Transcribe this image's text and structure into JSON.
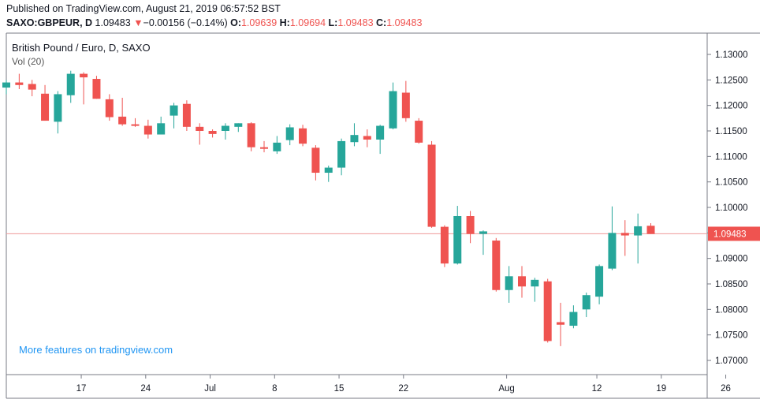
{
  "header": {
    "published": "Published on TradingView.com, August 21, 2019 06:57:52 BST",
    "symbol": "SAXO:GBPEUR, D",
    "last": "1.09483",
    "down_arrow": "▼",
    "change": "−0.00156 (−0.14%)",
    "o_label": "O:",
    "o_value": "1.09639",
    "h_label": "H:",
    "h_value": "1.09694",
    "l_label": "L:",
    "l_value": "1.09483",
    "c_label": "C:",
    "c_value": "1.09483"
  },
  "legend": {
    "title": "British Pound / Euro, D, SAXO",
    "volume": "Vol (20)"
  },
  "watermark": "More features on tradingview.com",
  "colors": {
    "up": "#26a69a",
    "down": "#ef5350",
    "grid": "#e0e3eb",
    "axis_text": "#131722",
    "price_line": "#ef9a9a",
    "watermark": "#2196f3"
  },
  "chart_data": {
    "type": "candlestick",
    "title": "British Pound / Euro, D, SAXO",
    "ylim": [
      1.065,
      1.134
    ],
    "y_ticks": [
      "1.13000",
      "1.12500",
      "1.12000",
      "1.11500",
      "1.11000",
      "1.10500",
      "1.10000",
      "1.09500",
      "1.09000",
      "1.08500",
      "1.08000",
      "1.07500",
      "1.07000"
    ],
    "x_ticks": [
      {
        "label": "17",
        "index": 3
      },
      {
        "label": "24",
        "index": 8
      },
      {
        "label": "Jul",
        "index": 13
      },
      {
        "label": "8",
        "index": 18
      },
      {
        "label": "15",
        "index": 23
      },
      {
        "label": "22",
        "index": 28
      },
      {
        "label": "Aug",
        "index": 36
      },
      {
        "label": "12",
        "index": 43
      },
      {
        "label": "19",
        "index": 48
      },
      {
        "label": "26",
        "index": 53
      }
    ],
    "last_price": 1.09483,
    "last_price_label": "1.09483",
    "candles": [
      {
        "o": 1.1235,
        "h": 1.125,
        "l": 1.1222,
        "c": 1.1245
      },
      {
        "o": 1.1245,
        "h": 1.1262,
        "l": 1.1232,
        "c": 1.124
      },
      {
        "o": 1.1242,
        "h": 1.125,
        "l": 1.1218,
        "c": 1.1231
      },
      {
        "o": 1.1223,
        "h": 1.124,
        "l": 1.117,
        "c": 1.117
      },
      {
        "o": 1.1168,
        "h": 1.1228,
        "l": 1.1145,
        "c": 1.1222
      },
      {
        "o": 1.122,
        "h": 1.1268,
        "l": 1.1205,
        "c": 1.1262
      },
      {
        "o": 1.1262,
        "h": 1.1265,
        "l": 1.1202,
        "c": 1.1255
      },
      {
        "o": 1.1252,
        "h": 1.1258,
        "l": 1.1213,
        "c": 1.1213
      },
      {
        "o": 1.1212,
        "h": 1.1222,
        "l": 1.117,
        "c": 1.1177
      },
      {
        "o": 1.1178,
        "h": 1.1215,
        "l": 1.116,
        "c": 1.1163
      },
      {
        "o": 1.1163,
        "h": 1.1175,
        "l": 1.1158,
        "c": 1.116
      },
      {
        "o": 1.116,
        "h": 1.1172,
        "l": 1.1135,
        "c": 1.1143
      },
      {
        "o": 1.1143,
        "h": 1.1178,
        "l": 1.1143,
        "c": 1.1165
      },
      {
        "o": 1.118,
        "h": 1.1205,
        "l": 1.1155,
        "c": 1.12
      },
      {
        "o": 1.1203,
        "h": 1.121,
        "l": 1.115,
        "c": 1.1158
      },
      {
        "o": 1.1158,
        "h": 1.1165,
        "l": 1.1123,
        "c": 1.115
      },
      {
        "o": 1.115,
        "h": 1.1153,
        "l": 1.1137,
        "c": 1.1144
      },
      {
        "o": 1.115,
        "h": 1.1165,
        "l": 1.1133,
        "c": 1.116
      },
      {
        "o": 1.1158,
        "h": 1.1165,
        "l": 1.1148,
        "c": 1.1165
      },
      {
        "o": 1.1165,
        "h": 1.1167,
        "l": 1.111,
        "c": 1.1118
      },
      {
        "o": 1.1118,
        "h": 1.113,
        "l": 1.1108,
        "c": 1.1115
      },
      {
        "o": 1.111,
        "h": 1.114,
        "l": 1.1105,
        "c": 1.1127
      },
      {
        "o": 1.1132,
        "h": 1.1163,
        "l": 1.1122,
        "c": 1.1157
      },
      {
        "o": 1.1155,
        "h": 1.1162,
        "l": 1.112,
        "c": 1.1125
      },
      {
        "o": 1.1117,
        "h": 1.1122,
        "l": 1.1053,
        "c": 1.1068
      },
      {
        "o": 1.1068,
        "h": 1.1082,
        "l": 1.105,
        "c": 1.1078
      },
      {
        "o": 1.1078,
        "h": 1.1135,
        "l": 1.1063,
        "c": 1.113
      },
      {
        "o": 1.1128,
        "h": 1.1165,
        "l": 1.112,
        "c": 1.1142
      },
      {
        "o": 1.114,
        "h": 1.1153,
        "l": 1.1118,
        "c": 1.1133
      },
      {
        "o": 1.1133,
        "h": 1.1162,
        "l": 1.1105,
        "c": 1.116
      },
      {
        "o": 1.1155,
        "h": 1.1245,
        "l": 1.1153,
        "c": 1.1228
      },
      {
        "o": 1.1225,
        "h": 1.1248,
        "l": 1.1168,
        "c": 1.1175
      },
      {
        "o": 1.117,
        "h": 1.1175,
        "l": 1.1125,
        "c": 1.1127
      },
      {
        "o": 1.1123,
        "h": 1.113,
        "l": 1.096,
        "c": 1.0962
      },
      {
        "o": 1.0962,
        "h": 1.0965,
        "l": 1.0883,
        "c": 1.089
      },
      {
        "o": 1.089,
        "h": 1.1003,
        "l": 1.0888,
        "c": 1.0983
      },
      {
        "o": 1.0983,
        "h": 1.0993,
        "l": 1.093,
        "c": 1.0948
      },
      {
        "o": 1.0948,
        "h": 1.0955,
        "l": 1.0907,
        "c": 1.0953
      },
      {
        "o": 1.0935,
        "h": 1.094,
        "l": 1.0835,
        "c": 1.0838
      },
      {
        "o": 1.0838,
        "h": 1.0885,
        "l": 1.0813,
        "c": 1.0865
      },
      {
        "o": 1.0865,
        "h": 1.0885,
        "l": 1.0823,
        "c": 1.0845
      },
      {
        "o": 1.0845,
        "h": 1.0862,
        "l": 1.0815,
        "c": 1.0858
      },
      {
        "o": 1.0855,
        "h": 1.086,
        "l": 1.0735,
        "c": 1.0738
      },
      {
        "o": 1.0775,
        "h": 1.0813,
        "l": 1.0728,
        "c": 1.077
      },
      {
        "o": 1.0768,
        "h": 1.0808,
        "l": 1.0763,
        "c": 1.0795
      },
      {
        "o": 1.08,
        "h": 1.0833,
        "l": 1.0785,
        "c": 1.0828
      },
      {
        "o": 1.0825,
        "h": 1.0888,
        "l": 1.081,
        "c": 1.0885
      },
      {
        "o": 1.088,
        "h": 1.1002,
        "l": 1.0877,
        "c": 1.095
      },
      {
        "o": 1.095,
        "h": 1.0975,
        "l": 1.0905,
        "c": 1.0945
      },
      {
        "o": 1.0945,
        "h": 1.0988,
        "l": 1.089,
        "c": 1.0963
      },
      {
        "o": 1.0964,
        "h": 1.0969,
        "l": 1.0948,
        "c": 1.0948
      }
    ]
  }
}
